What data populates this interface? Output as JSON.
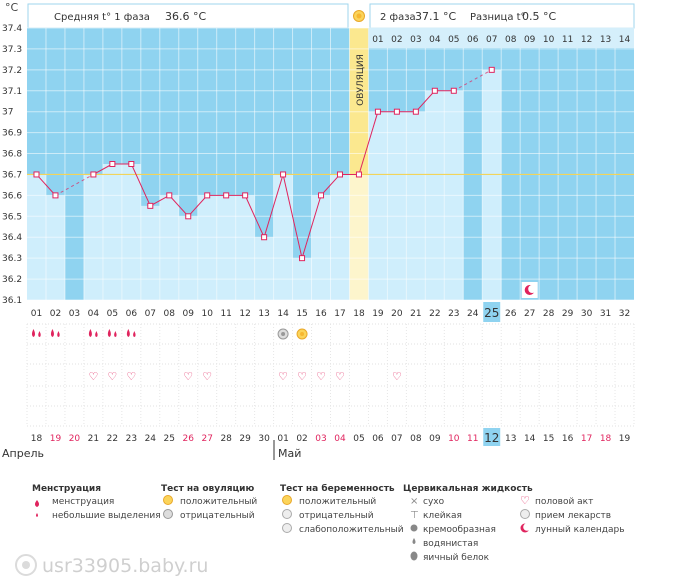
{
  "header": {
    "unit": "°C",
    "phase1_label": "Средняя t° 1 фаза",
    "phase1_value": "36.6 °C",
    "phase2_label": "2 фаза",
    "phase2_value": "37.1 °C",
    "diff_label": "Разница t°",
    "diff_value": "0.5 °C"
  },
  "ovulation_label": "ОВУЛЯЦИЯ",
  "cycle_days": [
    "01",
    "02",
    "03",
    "04",
    "05",
    "06",
    "07",
    "08",
    "09",
    "10",
    "11",
    "12",
    "13",
    "14",
    "15",
    "16",
    "17",
    "18",
    "19",
    "20",
    "21",
    "22",
    "23",
    "24",
    "25",
    "26",
    "27",
    "28",
    "29",
    "30",
    "31",
    "32"
  ],
  "dpo_labels": [
    "01",
    "02",
    "03",
    "04",
    "05",
    "06",
    "07",
    "08",
    "09",
    "10",
    "11",
    "12",
    "13",
    "14"
  ],
  "highlight_day": "25",
  "dates": [
    {
      "d": "18",
      "w": false
    },
    {
      "d": "19",
      "w": true
    },
    {
      "d": "20",
      "w": true
    },
    {
      "d": "21",
      "w": false
    },
    {
      "d": "22",
      "w": false
    },
    {
      "d": "23",
      "w": false
    },
    {
      "d": "24",
      "w": false
    },
    {
      "d": "25",
      "w": false
    },
    {
      "d": "26",
      "w": true
    },
    {
      "d": "27",
      "w": true
    },
    {
      "d": "28",
      "w": false
    },
    {
      "d": "29",
      "w": false
    },
    {
      "d": "30",
      "w": false
    },
    {
      "d": "01",
      "w": false
    },
    {
      "d": "02",
      "w": false
    },
    {
      "d": "03",
      "w": true
    },
    {
      "d": "04",
      "w": true
    },
    {
      "d": "05",
      "w": false
    },
    {
      "d": "06",
      "w": false
    },
    {
      "d": "07",
      "w": false
    },
    {
      "d": "08",
      "w": false
    },
    {
      "d": "09",
      "w": false
    },
    {
      "d": "10",
      "w": true
    },
    {
      "d": "11",
      "w": true
    },
    {
      "d": "12",
      "w": false
    },
    {
      "d": "13",
      "w": false
    },
    {
      "d": "14",
      "w": false
    },
    {
      "d": "15",
      "w": false
    },
    {
      "d": "16",
      "w": false
    },
    {
      "d": "17",
      "w": true
    },
    {
      "d": "18",
      "w": true
    },
    {
      "d": "19",
      "w": false
    }
  ],
  "highlight_date": "12",
  "month_april": "Апрель",
  "month_may": "Май",
  "chart_data": {
    "type": "line",
    "title": "",
    "ylabel": "°C",
    "xlabel": "",
    "ylim": [
      36.1,
      37.4
    ],
    "yticks": [
      "37.4",
      "37.3",
      "37.2",
      "37.1",
      "37",
      "36.9",
      "36.8",
      "36.7",
      "36.6",
      "36.5",
      "36.4",
      "36.3",
      "36.2",
      "36.1"
    ],
    "coverline": 36.7,
    "ovulation_day": 18,
    "x": [
      1,
      2,
      3,
      4,
      5,
      6,
      7,
      8,
      9,
      10,
      11,
      12,
      13,
      14,
      15,
      16,
      17,
      18,
      19,
      20,
      21,
      22,
      23,
      24,
      25,
      26,
      27,
      28,
      29,
      30,
      31,
      32
    ],
    "temperatures": [
      36.7,
      36.6,
      null,
      36.7,
      36.75,
      36.75,
      36.55,
      36.6,
      36.5,
      36.6,
      36.6,
      36.6,
      36.4,
      36.7,
      36.3,
      36.6,
      36.7,
      36.7,
      37.0,
      37.0,
      37.0,
      37.1,
      37.1,
      null,
      37.2,
      null,
      null,
      null,
      null,
      null,
      null,
      null
    ],
    "moon_day": 27
  },
  "symptoms": {
    "menstruation_days": [
      1,
      2,
      4,
      5,
      6
    ],
    "ovulation_test_negative_day": 14,
    "ovulation_test_positive_day": 15,
    "intercourse_days": [
      4,
      5,
      6,
      9,
      10,
      14,
      15,
      16,
      17,
      20
    ]
  },
  "legend": {
    "menstruation_title": "Менструация",
    "menstruation": "менструация",
    "spotting": "небольшие выделения",
    "ovulation_test_title": "Тест на овуляцию",
    "positive": "положительный",
    "negative": "отрицательный",
    "pregnancy_test_title": "Тест на беременность",
    "preg_positive": "положительный",
    "preg_negative": "отрицательный",
    "preg_weak": "слабоположительный",
    "cervical_title": "Цервикальная жидкость",
    "dry": "сухо",
    "sticky": "клейкая",
    "creamy": "кремообразная",
    "watery": "водянистая",
    "eggwhite": "яичный белок",
    "intercourse": "половой акт",
    "medication": "прием лекарств",
    "lunar": "лунный календарь"
  },
  "watermark": "usr33905.baby.ru",
  "colors": {
    "sky": "#8fd3f0",
    "bar": "#cfeefc",
    "ovulation": "#fbe88f",
    "line": "#e0245e",
    "accent": "#e0245e"
  }
}
